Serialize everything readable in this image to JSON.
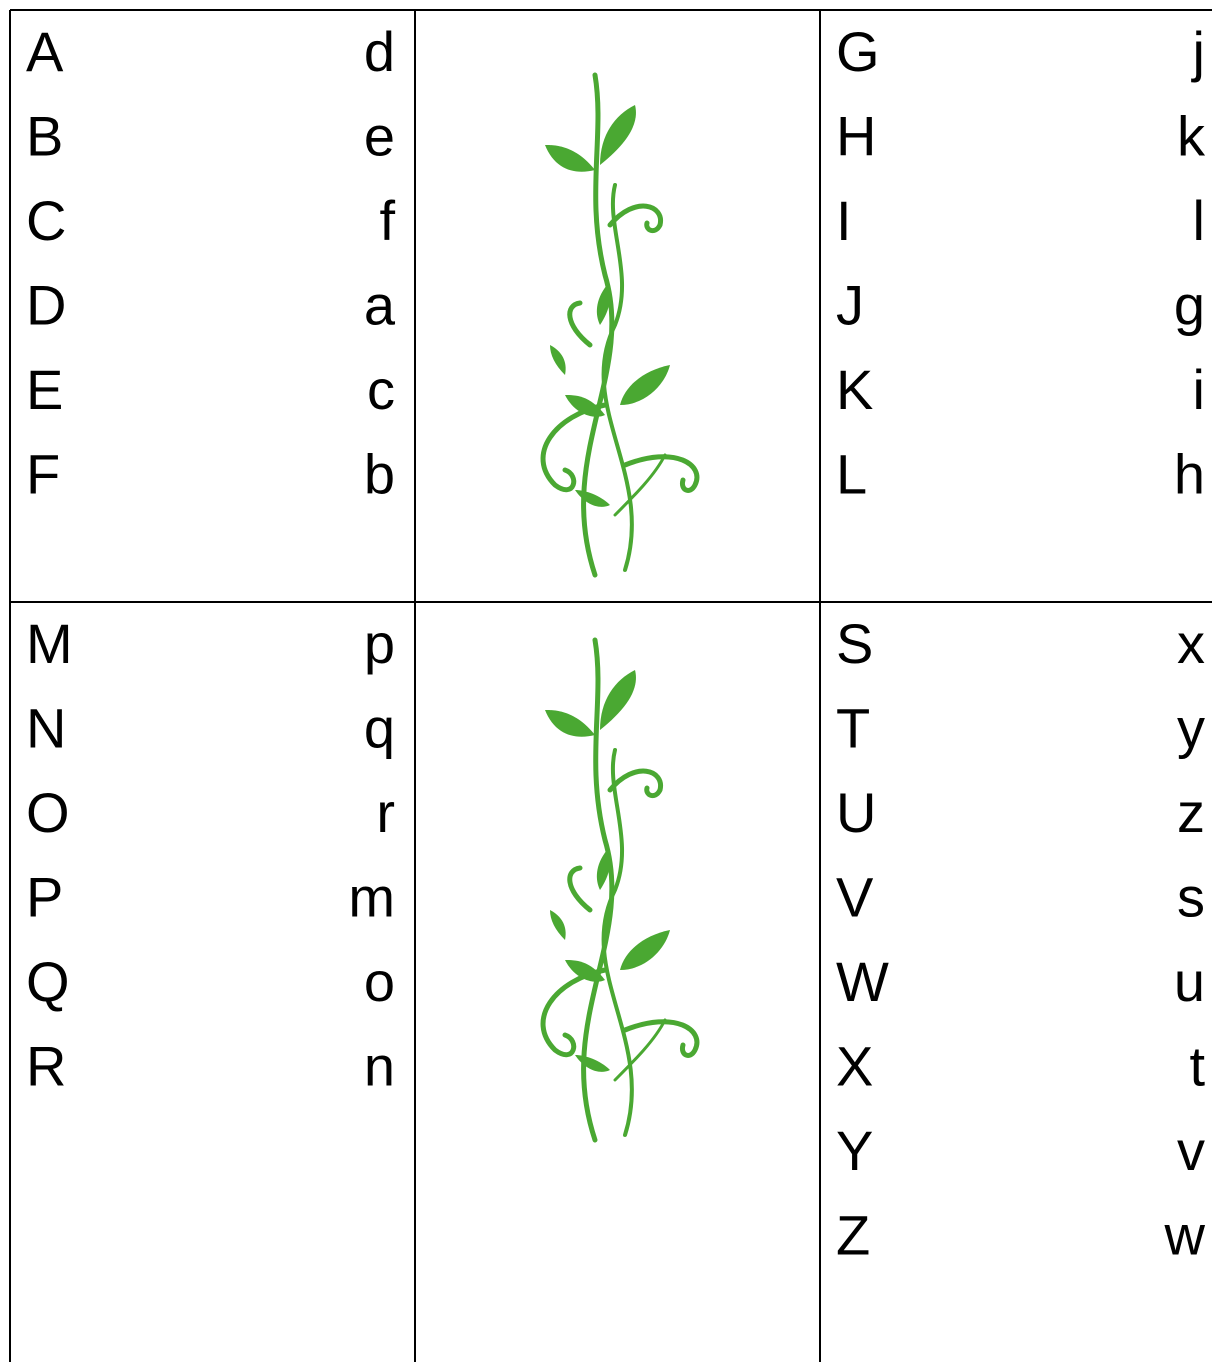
{
  "table": {
    "rows": [
      {
        "left": {
          "upper": [
            "A",
            "B",
            "C",
            "D",
            "E",
            "F"
          ],
          "lower": [
            "d",
            "e",
            "f",
            "a",
            "c",
            "b"
          ]
        },
        "right": {
          "upper": [
            "G",
            "H",
            "I",
            "J",
            "K",
            "L"
          ],
          "lower": [
            "j",
            "k",
            "l",
            "g",
            "i",
            "h"
          ]
        }
      },
      {
        "left": {
          "upper": [
            "M",
            "N",
            "O",
            "P",
            "Q",
            "R"
          ],
          "lower": [
            "p",
            "q",
            "r",
            "m",
            "o",
            "n"
          ]
        },
        "right": {
          "upper": [
            "S",
            "T",
            "U",
            "V",
            "W",
            "X",
            "Y",
            "Z"
          ],
          "lower": [
            "x",
            "y",
            "z",
            "s",
            "u",
            "t",
            "v",
            "w"
          ]
        }
      }
    ]
  }
}
